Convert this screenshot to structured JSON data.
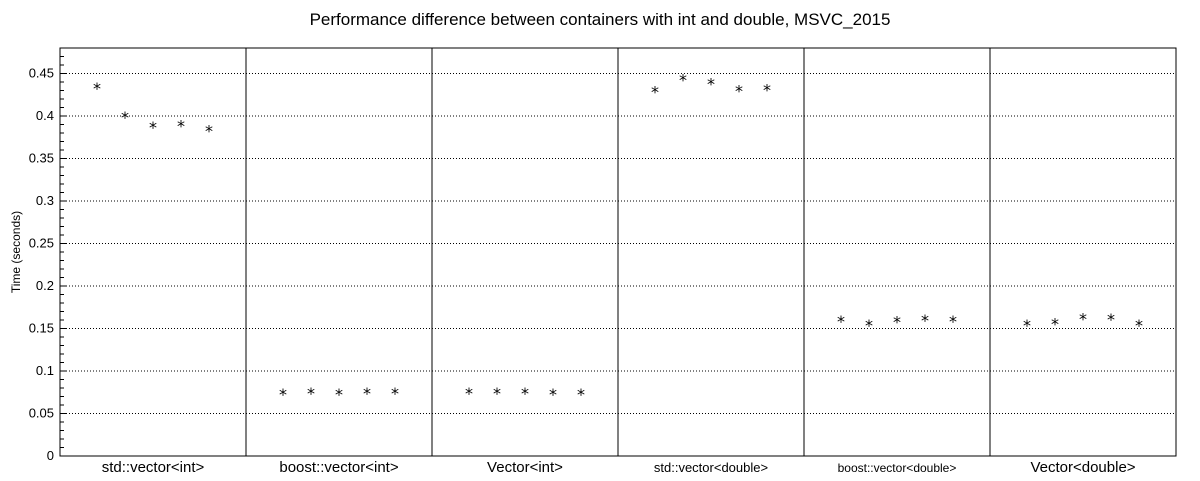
{
  "chart_data": {
    "type": "scatter",
    "title": "Performance difference between containers with int and double, MSVC_2015",
    "xlabel": "",
    "ylabel": "Time (seconds)",
    "ylim": [
      0,
      0.48
    ],
    "yticks": [
      "0",
      "0.05",
      "0.1",
      "0.15",
      "0.2",
      "0.25",
      "0.3",
      "0.35",
      "0.4",
      "0.45"
    ],
    "grid": true,
    "marker": "*",
    "categories": [
      "std::vector<int>",
      "boost::vector<int>",
      "Vector<int>",
      "std::vector<double>",
      "boost::vector<double>",
      "Vector<double>"
    ],
    "series": [
      {
        "values": [
          0.433,
          0.399,
          0.387,
          0.389,
          0.383
        ]
      },
      {
        "values": [
          0.073,
          0.074,
          0.073,
          0.074,
          0.074
        ]
      },
      {
        "values": [
          0.074,
          0.074,
          0.074,
          0.073,
          0.073
        ]
      },
      {
        "values": [
          0.429,
          0.443,
          0.438,
          0.43,
          0.431
        ]
      },
      {
        "values": [
          0.159,
          0.154,
          0.158,
          0.16,
          0.159
        ]
      },
      {
        "values": [
          0.154,
          0.156,
          0.162,
          0.161,
          0.154
        ]
      }
    ]
  }
}
